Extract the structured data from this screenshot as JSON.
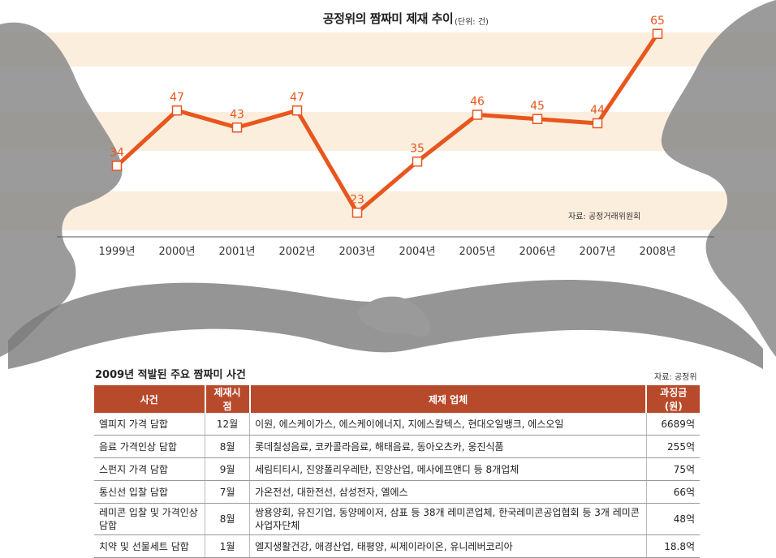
{
  "chart_data": {
    "type": "line",
    "title": "공정위의 짬짜미 제재 추이",
    "unit": "(단위: 건)",
    "source": "자료: 공정거래위원회",
    "categories": [
      "1999년",
      "2000년",
      "2001년",
      "2002년",
      "2003년",
      "2004년",
      "2005년",
      "2006년",
      "2007년",
      "2008년"
    ],
    "values": [
      34,
      47,
      43,
      47,
      23,
      35,
      46,
      45,
      44,
      65
    ],
    "ylim": [
      20,
      68
    ],
    "line_color": "#e8561e",
    "band_color": "#fbeedd"
  },
  "table": {
    "title": "2009년 적발된 주요 짬짜미 사건",
    "source": "자료: 공정위",
    "headers": [
      "사건",
      "제재시점",
      "제재 업체",
      "과징금(원)"
    ],
    "rows": [
      [
        "엘피지 가격 담합",
        "12월",
        "이원, 에스케이가스, 에스케이에너지, 지에스칼텍스, 현대오일뱅크, 에스오일",
        "6689억"
      ],
      [
        "음료 가격인상 담합",
        "8월",
        "롯데칠성음료, 코카콜라음료, 해태음료, 동아오츠카, 웅진식품",
        "255억"
      ],
      [
        "스펀지 가격 담합",
        "9월",
        "세림티티시, 진양폴리우레탄, 진양산업, 메사에프앤디 등 8개업체",
        "75억"
      ],
      [
        "통신선 입찰 담합",
        "7월",
        "가온전선, 대한전선, 삼성전자, 엘에스",
        "66억"
      ],
      [
        "레미콘 입찰 및 가격인상 담합",
        "8월",
        "쌍용양회, 유진기업, 동양메이저, 삼표 등 38개 레미콘업체, 한국레미콘공업협회 등 3개 레미콘사업자단체",
        "48억"
      ],
      [
        "치약 및 선물세트 담합",
        "1월",
        "엘지생활건강, 애경산업, 태평양, 씨제이라이온, 유니레버코리아",
        "18.8억"
      ]
    ],
    "header_color": "#b84a2c"
  }
}
